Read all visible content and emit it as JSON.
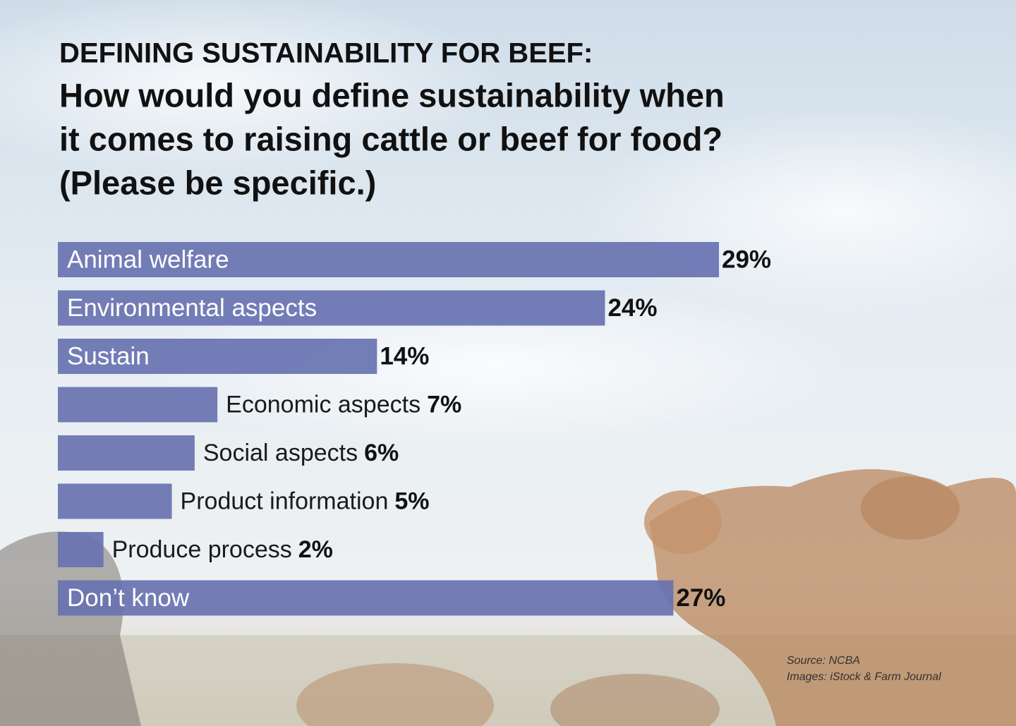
{
  "chart_data": {
    "type": "bar",
    "orientation": "horizontal",
    "title": "DEFINING SUSTAINABILITY FOR BEEF:",
    "subtitle": [
      "How would you define sustainability when",
      "it comes to raising cattle or beef for food?",
      "(Please be specific.)"
    ],
    "categories": [
      "Animal welfare",
      "Environmental aspects",
      "Sustain",
      "Economic aspects",
      "Social aspects",
      "Product information",
      "Produce process",
      "Don’t know"
    ],
    "values": [
      29,
      24,
      14,
      7,
      6,
      5,
      2,
      27
    ],
    "value_labels": [
      "29%",
      "24%",
      "14%",
      "7%",
      "6%",
      "5%",
      "2%",
      "27%"
    ],
    "color": "#6872b0",
    "source": [
      "Source: NCBA",
      "Images: iStock & Farm Journal"
    ]
  }
}
